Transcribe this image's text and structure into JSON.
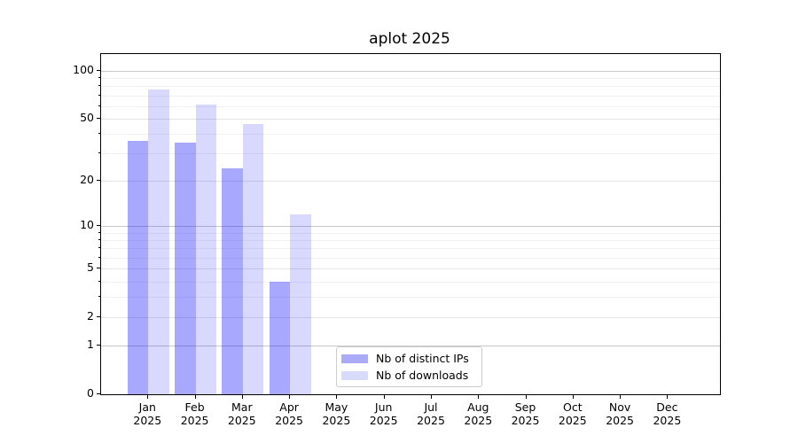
{
  "chart_data": {
    "type": "bar",
    "title": "aplot 2025",
    "categories": [
      "Jan",
      "Feb",
      "Mar",
      "Apr",
      "May",
      "Jun",
      "Jul",
      "Aug",
      "Sep",
      "Oct",
      "Nov",
      "Dec"
    ],
    "x_tick_second_line": "2025",
    "series": [
      {
        "name": "Nb of distinct IPs",
        "slug": "distinct-ips",
        "color": "rgba(0,0,255,0.34)",
        "swatch_color": "#aaaaf8",
        "values": [
          36,
          35,
          24,
          4,
          null,
          null,
          null,
          null,
          null,
          null,
          null,
          null
        ]
      },
      {
        "name": "Nb of downloads",
        "slug": "downloads",
        "color": "rgba(0,0,255,0.15)",
        "swatch_color": "#d9dbfc",
        "values": [
          76,
          61,
          46,
          12,
          null,
          null,
          null,
          null,
          null,
          null,
          null,
          null
        ]
      }
    ],
    "yscale": "log1p",
    "ylim": [
      0,
      127
    ],
    "yticks_labeled": [
      0,
      1,
      2,
      5,
      10,
      20,
      50,
      100
    ],
    "yticks_decade": [
      1,
      10,
      100
    ],
    "yticks_minor": [
      3,
      4,
      6,
      7,
      8,
      9,
      30,
      40,
      60,
      70,
      80,
      90
    ],
    "grid": true,
    "legend": {
      "position": "lower-center",
      "entries": [
        "Nb of distinct IPs",
        "Nb of downloads"
      ]
    }
  }
}
